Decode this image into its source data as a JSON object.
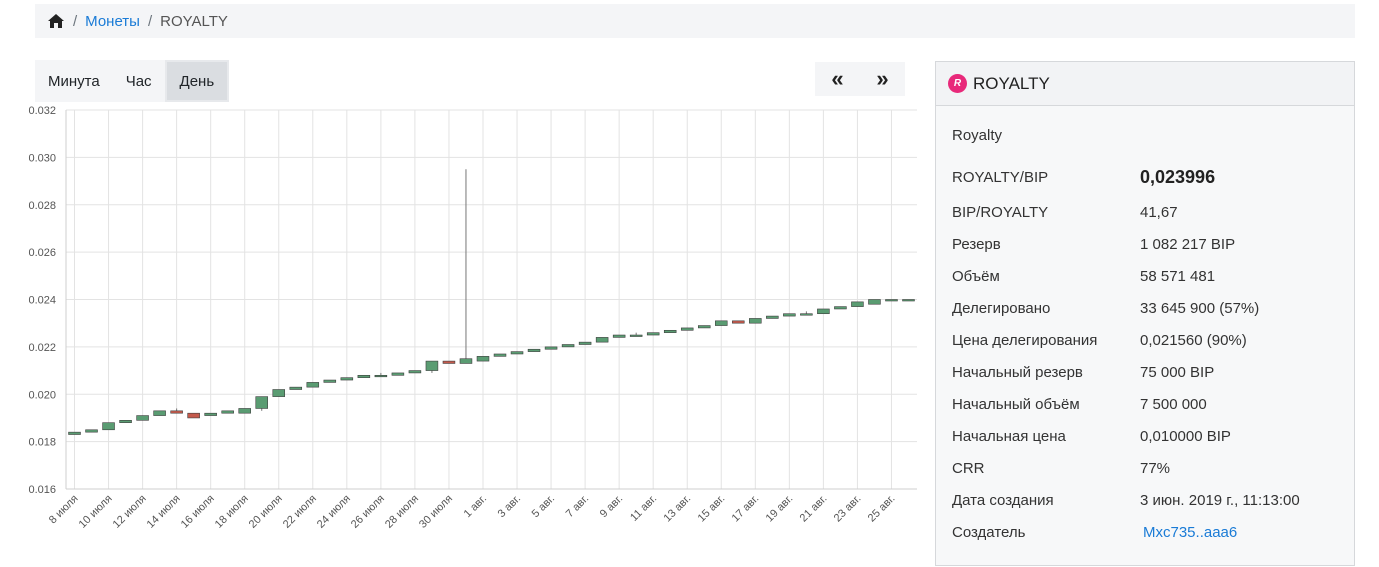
{
  "breadcrumb": {
    "home_icon": "home-icon",
    "link": "Монеты",
    "current": "ROYALTY"
  },
  "range_tabs": [
    "Минута",
    "Час",
    "День"
  ],
  "active_range": "День",
  "nav": {
    "prev": "«",
    "next": "»"
  },
  "info": {
    "header_title": "ROYALTY",
    "badge_letter": "R",
    "coin_name": "Royalty",
    "price_label": "ROYALTY/BIP",
    "price_value": "0,023996",
    "rows": [
      {
        "label": "BIP/ROYALTY",
        "value": "41,67"
      },
      {
        "label": "Резерв",
        "value": "1 082 217 BIP"
      },
      {
        "label": "Объём",
        "value": "58 571 481"
      },
      {
        "label": "Делегировано",
        "value": "33 645 900 (57%)"
      },
      {
        "label": "Цена делегирования",
        "value": "0,021560 (90%)"
      },
      {
        "label": "Начальный резерв",
        "value": "75 000 BIP"
      },
      {
        "label": "Начальный объём",
        "value": "7 500 000"
      },
      {
        "label": "Начальная цена",
        "value": "0,010000 BIP"
      },
      {
        "label": "CRR",
        "value": "77%"
      },
      {
        "label": "Дата создания",
        "value": "3 июн. 2019 г., 11:13:00"
      }
    ],
    "creator_label": "Создатель",
    "creator_value": "Mxc735..aaa6"
  },
  "colors": {
    "up": "#5a9c72",
    "down": "#c45a4c",
    "link": "#1a7bd6",
    "badge": "#e8297a"
  },
  "chart_data": {
    "type": "candlestick",
    "ylim": [
      0.016,
      0.032
    ],
    "y_ticks": [
      "0.016",
      "0.018",
      "0.020",
      "0.022",
      "0.024",
      "0.026",
      "0.028",
      "0.030",
      "0.032"
    ],
    "x_labels": [
      "8 июля",
      "10 июля",
      "12 июля",
      "14 июля",
      "16 июля",
      "18 июля",
      "20 июля",
      "22 июля",
      "24 июля",
      "26 июля",
      "28 июля",
      "30 июля",
      "1 авг.",
      "3 авг.",
      "5 авг.",
      "7 авг.",
      "9 авг.",
      "11 авг.",
      "13 авг.",
      "15 авг.",
      "17 авг.",
      "19 авг.",
      "21 авг.",
      "23 авг.",
      "25 авг."
    ],
    "candles": [
      {
        "o": 0.0183,
        "c": 0.0184,
        "h": 0.0184,
        "l": 0.0183
      },
      {
        "o": 0.0184,
        "c": 0.0185,
        "h": 0.0185,
        "l": 0.0184
      },
      {
        "o": 0.0185,
        "c": 0.0188,
        "h": 0.0188,
        "l": 0.0185
      },
      {
        "o": 0.0188,
        "c": 0.0189,
        "h": 0.0189,
        "l": 0.0188
      },
      {
        "o": 0.0189,
        "c": 0.0191,
        "h": 0.0191,
        "l": 0.0189
      },
      {
        "o": 0.0191,
        "c": 0.0193,
        "h": 0.0193,
        "l": 0.0191
      },
      {
        "o": 0.0193,
        "c": 0.0192,
        "h": 0.0194,
        "l": 0.0192
      },
      {
        "o": 0.0192,
        "c": 0.019,
        "h": 0.0192,
        "l": 0.019
      },
      {
        "o": 0.0191,
        "c": 0.0192,
        "h": 0.0192,
        "l": 0.0191
      },
      {
        "o": 0.0192,
        "c": 0.0193,
        "h": 0.0193,
        "l": 0.0192
      },
      {
        "o": 0.0192,
        "c": 0.0194,
        "h": 0.0194,
        "l": 0.0192
      },
      {
        "o": 0.0194,
        "c": 0.0199,
        "h": 0.0199,
        "l": 0.0193
      },
      {
        "o": 0.0199,
        "c": 0.0202,
        "h": 0.0202,
        "l": 0.0199
      },
      {
        "o": 0.0202,
        "c": 0.0203,
        "h": 0.0203,
        "l": 0.0202
      },
      {
        "o": 0.0203,
        "c": 0.0205,
        "h": 0.0205,
        "l": 0.0203
      },
      {
        "o": 0.0205,
        "c": 0.0206,
        "h": 0.0206,
        "l": 0.0205
      },
      {
        "o": 0.0206,
        "c": 0.0207,
        "h": 0.0207,
        "l": 0.0206
      },
      {
        "o": 0.0207,
        "c": 0.0208,
        "h": 0.0208,
        "l": 0.0207
      },
      {
        "o": 0.0208,
        "c": 0.0208,
        "h": 0.0209,
        "l": 0.0208
      },
      {
        "o": 0.0208,
        "c": 0.0209,
        "h": 0.0209,
        "l": 0.0208
      },
      {
        "o": 0.0209,
        "c": 0.021,
        "h": 0.021,
        "l": 0.0209
      },
      {
        "o": 0.021,
        "c": 0.0214,
        "h": 0.0214,
        "l": 0.0209
      },
      {
        "o": 0.0214,
        "c": 0.0213,
        "h": 0.0214,
        "l": 0.0213
      },
      {
        "o": 0.0213,
        "c": 0.0215,
        "h": 0.0295,
        "l": 0.0213
      },
      {
        "o": 0.0214,
        "c": 0.0216,
        "h": 0.0216,
        "l": 0.0214
      },
      {
        "o": 0.0216,
        "c": 0.0217,
        "h": 0.0217,
        "l": 0.0216
      },
      {
        "o": 0.0217,
        "c": 0.0218,
        "h": 0.0218,
        "l": 0.0217
      },
      {
        "o": 0.0218,
        "c": 0.0219,
        "h": 0.0219,
        "l": 0.0218
      },
      {
        "o": 0.0219,
        "c": 0.022,
        "h": 0.022,
        "l": 0.0219
      },
      {
        "o": 0.022,
        "c": 0.0221,
        "h": 0.0221,
        "l": 0.022
      },
      {
        "o": 0.0221,
        "c": 0.0222,
        "h": 0.0222,
        "l": 0.0221
      },
      {
        "o": 0.0222,
        "c": 0.0224,
        "h": 0.0224,
        "l": 0.0222
      },
      {
        "o": 0.0224,
        "c": 0.0225,
        "h": 0.0225,
        "l": 0.0224
      },
      {
        "o": 0.0225,
        "c": 0.0225,
        "h": 0.0226,
        "l": 0.0225
      },
      {
        "o": 0.0225,
        "c": 0.0226,
        "h": 0.0226,
        "l": 0.0225
      },
      {
        "o": 0.0226,
        "c": 0.0227,
        "h": 0.0227,
        "l": 0.0226
      },
      {
        "o": 0.0227,
        "c": 0.0228,
        "h": 0.0228,
        "l": 0.0227
      },
      {
        "o": 0.0228,
        "c": 0.0229,
        "h": 0.0229,
        "l": 0.0228
      },
      {
        "o": 0.0229,
        "c": 0.0231,
        "h": 0.0231,
        "l": 0.0229
      },
      {
        "o": 0.0231,
        "c": 0.023,
        "h": 0.0231,
        "l": 0.023
      },
      {
        "o": 0.023,
        "c": 0.0232,
        "h": 0.0232,
        "l": 0.023
      },
      {
        "o": 0.0232,
        "c": 0.0233,
        "h": 0.0233,
        "l": 0.0232
      },
      {
        "o": 0.0233,
        "c": 0.0234,
        "h": 0.0234,
        "l": 0.0233
      },
      {
        "o": 0.0234,
        "c": 0.0234,
        "h": 0.0235,
        "l": 0.0234
      },
      {
        "o": 0.0234,
        "c": 0.0236,
        "h": 0.0236,
        "l": 0.0234
      },
      {
        "o": 0.0236,
        "c": 0.0237,
        "h": 0.0237,
        "l": 0.0236
      },
      {
        "o": 0.0237,
        "c": 0.0239,
        "h": 0.0239,
        "l": 0.0237
      },
      {
        "o": 0.0238,
        "c": 0.024,
        "h": 0.024,
        "l": 0.0238
      },
      {
        "o": 0.024,
        "c": 0.024,
        "h": 0.024,
        "l": 0.024
      },
      {
        "o": 0.024,
        "c": 0.024,
        "h": 0.024,
        "l": 0.024
      }
    ]
  }
}
